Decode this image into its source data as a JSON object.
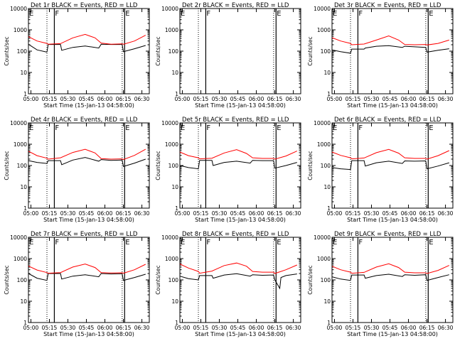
{
  "figure": {
    "background": "#ffffff",
    "axis_color": "#000000",
    "events_color": "#000000",
    "lld_color": "#ff0000"
  },
  "chart_data": [
    {
      "type": "line",
      "panel": "Det 1r",
      "title": "Det 1r  BLACK = Events, RED = LLD",
      "xlabel": "Start Time (15-Jan-13 04:58:00)",
      "ylabel": "Counts/sec",
      "x_ticks": [
        "05:00",
        "05:15",
        "05:30",
        "05:45",
        "06:00",
        "06:15",
        "06:30"
      ],
      "y_ticks": [
        "1",
        "10",
        "100",
        "1000",
        "10000"
      ],
      "ylim": [
        1,
        10000
      ],
      "yscale": "log",
      "markers": [
        {
          "label": "E",
          "time": "04:58"
        },
        {
          "label": "F",
          "time": "05:19"
        },
        {
          "label": "E",
          "time": "06:16"
        }
      ],
      "dotted_lines": [
        "05:13",
        "06:14"
      ],
      "series": [
        {
          "name": "Events",
          "color": "#000000",
          "x": [
            "04:58",
            "05:05",
            "05:13",
            "05:14",
            "05:24",
            "05:25",
            "05:34",
            "05:44",
            "05:55",
            "05:57",
            "06:05",
            "06:14",
            "06:15",
            "06:24",
            "06:33"
          ],
          "y": [
            210,
            115,
            90,
            205,
            205,
            110,
            150,
            175,
            140,
            210,
            205,
            205,
            95,
            130,
            185
          ]
        },
        {
          "name": "LLD",
          "color": "#ff0000",
          "x": [
            "04:58",
            "05:05",
            "05:13",
            "05:14",
            "05:24",
            "05:34",
            "05:44",
            "05:52",
            "05:57",
            "06:05",
            "06:14",
            "06:15",
            "06:24",
            "06:33"
          ],
          "y": [
            480,
            300,
            230,
            210,
            225,
            420,
            610,
            420,
            240,
            210,
            220,
            210,
            300,
            560
          ]
        }
      ]
    },
    {
      "type": "line",
      "panel": "Det 2r",
      "title": "Det 2r  BLACK = Events, RED = LLD",
      "xlabel": "Start Time (15-Jan-13 04:58:00)",
      "ylabel": "Counts/sec",
      "x_ticks": [
        "05:00",
        "05:15",
        "05:30",
        "05:45",
        "06:00",
        "06:15",
        "06:30"
      ],
      "y_ticks": [
        "1",
        "10",
        "100",
        "1000",
        "10000"
      ],
      "ylim": [
        1,
        10000
      ],
      "yscale": "log",
      "markers": [
        {
          "label": "E",
          "time": "04:58"
        },
        {
          "label": "F",
          "time": "05:19"
        },
        {
          "label": "E",
          "time": "06:16"
        }
      ],
      "dotted_lines": [
        "05:13",
        "06:14"
      ],
      "series": []
    },
    {
      "type": "line",
      "panel": "Det 3r",
      "title": "Det 3r  BLACK = Events, RED = LLD",
      "xlabel": "Start Time (15-Jan-13 04:58:00)",
      "ylabel": "Counts/sec",
      "x_ticks": [
        "05:00",
        "05:15",
        "05:30",
        "05:45",
        "06:00",
        "06:15",
        "06:30"
      ],
      "y_ticks": [
        "1",
        "10",
        "100",
        "1000",
        "10000"
      ],
      "ylim": [
        1,
        10000
      ],
      "yscale": "log",
      "markers": [
        {
          "label": "E",
          "time": "04:58"
        },
        {
          "label": "F",
          "time": "05:19"
        },
        {
          "label": "E",
          "time": "06:16"
        }
      ],
      "dotted_lines": [
        "05:13",
        "06:14"
      ],
      "series": [
        {
          "name": "Events",
          "color": "#000000",
          "x": [
            "04:58",
            "05:05",
            "05:13",
            "05:14",
            "05:24",
            "05:25",
            "05:34",
            "05:44",
            "05:55",
            "05:57",
            "06:05",
            "06:14",
            "06:15",
            "06:24",
            "06:33"
          ],
          "y": [
            115,
            95,
            80,
            125,
            125,
            140,
            170,
            180,
            150,
            170,
            160,
            150,
            90,
            110,
            130
          ]
        },
        {
          "name": "LLD",
          "color": "#ff0000",
          "x": [
            "04:58",
            "05:05",
            "05:13",
            "05:14",
            "05:24",
            "05:34",
            "05:44",
            "05:52",
            "05:57",
            "06:05",
            "06:14",
            "06:15",
            "06:24",
            "06:33"
          ],
          "y": [
            430,
            300,
            230,
            200,
            215,
            330,
            520,
            330,
            205,
            200,
            205,
            195,
            230,
            330
          ]
        }
      ]
    },
    {
      "type": "line",
      "panel": "Det 4r",
      "title": "Det 4r  BLACK = Events, RED = LLD",
      "xlabel": "Start Time (15-Jan-13 04:58:00)",
      "ylabel": "Counts/sec",
      "x_ticks": [
        "05:00",
        "05:15",
        "05:30",
        "05:45",
        "06:00",
        "06:15",
        "06:30"
      ],
      "y_ticks": [
        "1",
        "10",
        "100",
        "1000",
        "10000"
      ],
      "ylim": [
        1,
        10000
      ],
      "yscale": "log",
      "markers": [
        {
          "label": "E",
          "time": "04:58"
        },
        {
          "label": "F",
          "time": "05:19"
        },
        {
          "label": "E",
          "time": "06:16"
        }
      ],
      "dotted_lines": [
        "05:13",
        "06:14"
      ],
      "series": [
        {
          "name": "Events",
          "color": "#000000",
          "x": [
            "04:58",
            "05:05",
            "05:13",
            "05:14",
            "05:24",
            "05:25",
            "05:34",
            "05:44",
            "05:55",
            "05:57",
            "06:05",
            "06:14",
            "06:15",
            "06:24",
            "06:33"
          ],
          "y": [
            170,
            140,
            125,
            170,
            170,
            110,
            180,
            240,
            160,
            190,
            175,
            180,
            90,
            130,
            200
          ]
        },
        {
          "name": "LLD",
          "color": "#ff0000",
          "x": [
            "04:58",
            "05:05",
            "05:13",
            "05:14",
            "05:24",
            "05:34",
            "05:44",
            "05:52",
            "05:57",
            "06:05",
            "06:14",
            "06:15",
            "06:24",
            "06:33"
          ],
          "y": [
            470,
            290,
            220,
            200,
            230,
            410,
            580,
            390,
            210,
            200,
            205,
            190,
            300,
            580
          ]
        }
      ]
    },
    {
      "type": "line",
      "panel": "Det 5r",
      "title": "Det 5r  BLACK = Events, RED = LLD",
      "xlabel": "Start Time (15-Jan-13 04:58:00)",
      "ylabel": "Counts/sec",
      "x_ticks": [
        "05:00",
        "05:15",
        "05:30",
        "05:45",
        "06:00",
        "06:15",
        "06:30"
      ],
      "y_ticks": [
        "1",
        "10",
        "100",
        "1000",
        "10000"
      ],
      "ylim": [
        1,
        10000
      ],
      "yscale": "log",
      "markers": [
        {
          "label": "E",
          "time": "04:58"
        },
        {
          "label": "F",
          "time": "05:19"
        },
        {
          "label": "E",
          "time": "06:16"
        }
      ],
      "dotted_lines": [
        "05:13",
        "06:14"
      ],
      "series": [
        {
          "name": "Events",
          "color": "#000000",
          "x": [
            "04:58",
            "05:05",
            "05:13",
            "05:14",
            "05:24",
            "05:25",
            "05:34",
            "05:44",
            "05:55",
            "05:57",
            "06:05",
            "06:14",
            "06:15",
            "06:24",
            "06:33"
          ],
          "y": [
            100,
            80,
            70,
            175,
            175,
            100,
            140,
            160,
            130,
            175,
            170,
            170,
            75,
            100,
            140
          ]
        },
        {
          "name": "LLD",
          "color": "#ff0000",
          "x": [
            "04:58",
            "05:05",
            "05:13",
            "05:14",
            "05:24",
            "05:34",
            "05:44",
            "05:52",
            "05:57",
            "06:05",
            "06:14",
            "06:15",
            "06:24",
            "06:33"
          ],
          "y": [
            430,
            290,
            230,
            205,
            220,
            390,
            560,
            370,
            230,
            215,
            215,
            200,
            280,
            480
          ]
        }
      ]
    },
    {
      "type": "line",
      "panel": "Det 6r",
      "title": "Det 6r  BLACK = Events, RED = LLD",
      "xlabel": "Start Time (15-Jan-13 04:58:00)",
      "ylabel": "Counts/sec",
      "x_ticks": [
        "05:00",
        "05:15",
        "05:30",
        "05:45",
        "06:00",
        "06:15",
        "06:30"
      ],
      "y_ticks": [
        "1",
        "10",
        "100",
        "1000",
        "10000"
      ],
      "ylim": [
        1,
        10000
      ],
      "yscale": "log",
      "markers": [
        {
          "label": "E",
          "time": "04:58"
        },
        {
          "label": "F",
          "time": "05:19"
        },
        {
          "label": "E",
          "time": "06:16"
        }
      ],
      "dotted_lines": [
        "05:13",
        "06:14"
      ],
      "series": [
        {
          "name": "Events",
          "color": "#000000",
          "x": [
            "04:58",
            "05:05",
            "05:13",
            "05:14",
            "05:24",
            "05:25",
            "05:34",
            "05:44",
            "05:55",
            "05:57",
            "06:05",
            "06:14",
            "06:15",
            "06:24",
            "06:33"
          ],
          "y": [
            80,
            70,
            65,
            170,
            170,
            95,
            135,
            160,
            125,
            165,
            160,
            165,
            70,
            95,
            135
          ]
        },
        {
          "name": "LLD",
          "color": "#ff0000",
          "x": [
            "04:58",
            "05:05",
            "05:13",
            "05:14",
            "05:24",
            "05:34",
            "05:44",
            "05:52",
            "05:57",
            "06:05",
            "06:14",
            "06:15",
            "06:24",
            "06:33"
          ],
          "y": [
            430,
            300,
            230,
            205,
            225,
            400,
            570,
            380,
            230,
            215,
            215,
            200,
            290,
            500
          ]
        }
      ]
    },
    {
      "type": "line",
      "panel": "Det 7r",
      "title": "Det 7r  BLACK = Events, RED = LLD",
      "xlabel": "Start Time (15-Jan-13 04:58:00)",
      "ylabel": "Counts/sec",
      "x_ticks": [
        "05:00",
        "05:15",
        "05:30",
        "05:45",
        "06:00",
        "06:15",
        "06:30"
      ],
      "y_ticks": [
        "1",
        "10",
        "100",
        "1000",
        "10000"
      ],
      "ylim": [
        1,
        10000
      ],
      "yscale": "log",
      "markers": [
        {
          "label": "E",
          "time": "04:58"
        },
        {
          "label": "F",
          "time": "05:19"
        },
        {
          "label": "E",
          "time": "06:16"
        }
      ],
      "dotted_lines": [
        "05:13",
        "06:14"
      ],
      "series": [
        {
          "name": "Events",
          "color": "#000000",
          "x": [
            "04:58",
            "05:05",
            "05:13",
            "05:14",
            "05:24",
            "05:25",
            "05:34",
            "05:44",
            "05:55",
            "05:57",
            "06:05",
            "06:14",
            "06:15",
            "06:24",
            "06:33"
          ],
          "y": [
            200,
            120,
            95,
            200,
            200,
            110,
            150,
            175,
            140,
            200,
            190,
            195,
            95,
            130,
            185
          ]
        },
        {
          "name": "LLD",
          "color": "#ff0000",
          "x": [
            "04:58",
            "05:05",
            "05:13",
            "05:14",
            "05:24",
            "05:34",
            "05:44",
            "05:52",
            "05:57",
            "06:05",
            "06:14",
            "06:15",
            "06:24",
            "06:33"
          ],
          "y": [
            450,
            290,
            220,
            205,
            220,
            400,
            560,
            380,
            220,
            210,
            215,
            205,
            300,
            540
          ]
        }
      ]
    },
    {
      "type": "line",
      "panel": "Det 8r",
      "title": "Det 8r  BLACK = Events, RED = LLD",
      "xlabel": "Start Time (15-Jan-13 04:58:00)",
      "ylabel": "Counts/sec",
      "x_ticks": [
        "05:00",
        "05:15",
        "05:30",
        "05:45",
        "06:00",
        "06:15",
        "06:30"
      ],
      "y_ticks": [
        "1",
        "10",
        "100",
        "1000",
        "10000"
      ],
      "ylim": [
        1,
        10000
      ],
      "yscale": "log",
      "markers": [
        {
          "label": "E",
          "time": "04:58"
        },
        {
          "label": "F",
          "time": "05:19"
        },
        {
          "label": "E",
          "time": "06:16"
        }
      ],
      "dotted_lines": [
        "05:13",
        "06:14"
      ],
      "series": [
        {
          "name": "Events",
          "color": "#000000",
          "x": [
            "04:58",
            "05:05",
            "05:13",
            "05:14",
            "05:24",
            "05:25",
            "05:34",
            "05:44",
            "05:55",
            "05:57",
            "06:05",
            "06:14",
            "06:15",
            "06:19",
            "06:20",
            "06:24",
            "06:33"
          ],
          "y": [
            150,
            115,
            100,
            160,
            160,
            120,
            170,
            195,
            150,
            175,
            165,
            170,
            100,
            40,
            130,
            160,
            190
          ]
        },
        {
          "name": "LLD",
          "color": "#ff0000",
          "x": [
            "04:58",
            "05:05",
            "05:13",
            "05:14",
            "05:24",
            "05:34",
            "05:44",
            "05:52",
            "05:57",
            "06:05",
            "06:14",
            "06:15",
            "06:24",
            "06:33"
          ],
          "y": [
            560,
            360,
            250,
            205,
            260,
            470,
            620,
            440,
            250,
            230,
            230,
            200,
            300,
            500
          ]
        }
      ]
    },
    {
      "type": "line",
      "panel": "Det 9r",
      "title": "Det 9r  BLACK = Events, RED = LLD",
      "xlabel": "Start Time (15-Jan-13 04:58:00)",
      "ylabel": "Counts/sec",
      "x_ticks": [
        "05:00",
        "05:15",
        "05:30",
        "05:45",
        "06:00",
        "06:15",
        "06:30"
      ],
      "y_ticks": [
        "1",
        "10",
        "100",
        "1000",
        "10000"
      ],
      "ylim": [
        1,
        10000
      ],
      "yscale": "log",
      "markers": [
        {
          "label": "E",
          "time": "04:58"
        },
        {
          "label": "F",
          "time": "05:19"
        },
        {
          "label": "E",
          "time": "06:16"
        }
      ],
      "dotted_lines": [
        "05:13",
        "06:14"
      ],
      "series": [
        {
          "name": "Events",
          "color": "#000000",
          "x": [
            "04:58",
            "05:05",
            "05:13",
            "05:14",
            "05:24",
            "05:25",
            "05:34",
            "05:44",
            "05:55",
            "05:57",
            "06:05",
            "06:14",
            "06:15",
            "06:24",
            "06:33"
          ],
          "y": [
            140,
            110,
            95,
            170,
            170,
            120,
            160,
            185,
            145,
            175,
            165,
            175,
            95,
            130,
            175
          ]
        },
        {
          "name": "LLD",
          "color": "#ff0000",
          "x": [
            "04:58",
            "05:05",
            "05:13",
            "05:14",
            "05:24",
            "05:34",
            "05:44",
            "05:52",
            "05:57",
            "06:05",
            "06:14",
            "06:15",
            "06:24",
            "06:33"
          ],
          "y": [
            440,
            300,
            230,
            205,
            225,
            400,
            570,
            380,
            230,
            215,
            215,
            200,
            280,
            480
          ]
        }
      ]
    }
  ]
}
